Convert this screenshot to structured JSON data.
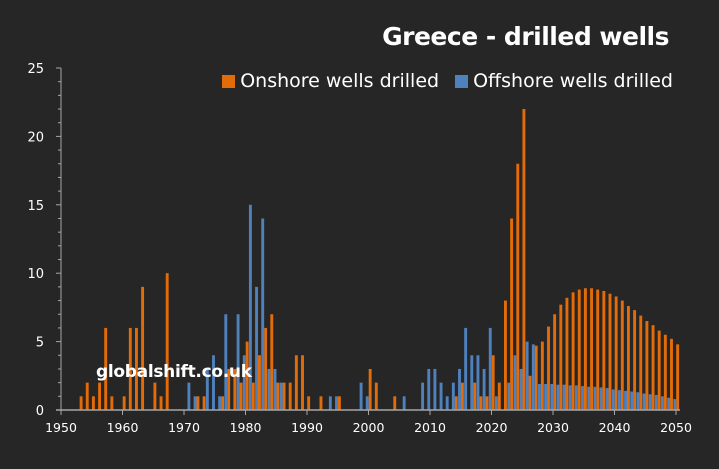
{
  "chart_data": {
    "type": "bar",
    "title": "Greece - drilled wells",
    "watermark": "globalshift.co.uk",
    "xlabel": "",
    "ylabel": "",
    "ylim": [
      0,
      25
    ],
    "xlim": [
      1950,
      2050
    ],
    "yticks": [
      0,
      5,
      10,
      15,
      20,
      25
    ],
    "xticks": [
      1950,
      1960,
      1970,
      1980,
      1990,
      2000,
      2010,
      2020,
      2030,
      2040,
      2050
    ],
    "grid": false,
    "legend_position": "top-right",
    "colors": {
      "onshore": "#e36c0a",
      "offshore": "#4f81bd",
      "background": "#262626",
      "axis": "#a6a6a6",
      "text": "#ffffff"
    },
    "series": [
      {
        "name": "Onshore wells drilled",
        "key": "onshore",
        "points": [
          [
            1953,
            1
          ],
          [
            1954,
            2
          ],
          [
            1955,
            1
          ],
          [
            1956,
            2
          ],
          [
            1957,
            6
          ],
          [
            1958,
            1
          ],
          [
            1960,
            1
          ],
          [
            1961,
            6
          ],
          [
            1962,
            6
          ],
          [
            1963,
            9
          ],
          [
            1965,
            2
          ],
          [
            1966,
            1
          ],
          [
            1967,
            10
          ],
          [
            1972,
            1
          ],
          [
            1973,
            1
          ],
          [
            1976,
            1
          ],
          [
            1977,
            3
          ],
          [
            1978,
            3
          ],
          [
            1979,
            2
          ],
          [
            1980,
            5
          ],
          [
            1981,
            2
          ],
          [
            1982,
            4
          ],
          [
            1983,
            6
          ],
          [
            1984,
            7
          ],
          [
            1985,
            2
          ],
          [
            1986,
            2
          ],
          [
            1987,
            2
          ],
          [
            1988,
            4
          ],
          [
            1989,
            4
          ],
          [
            1990,
            1
          ],
          [
            1992,
            1
          ],
          [
            1995,
            1
          ],
          [
            2000,
            3
          ],
          [
            2001,
            2
          ],
          [
            2004,
            1
          ],
          [
            2014,
            1
          ],
          [
            2015,
            2
          ],
          [
            2017,
            2
          ],
          [
            2018,
            1
          ],
          [
            2019,
            1
          ],
          [
            2020,
            4
          ],
          [
            2021,
            2
          ],
          [
            2022,
            8
          ],
          [
            2023,
            14
          ],
          [
            2024,
            18
          ],
          [
            2025,
            22
          ],
          [
            2026,
            2.5
          ],
          [
            2027,
            4.7
          ],
          [
            2028,
            5
          ],
          [
            2029,
            6.1
          ],
          [
            2030,
            7
          ],
          [
            2031,
            7.7
          ],
          [
            2032,
            8.2
          ],
          [
            2033,
            8.6
          ],
          [
            2034,
            8.8
          ],
          [
            2035,
            8.9
          ],
          [
            2036,
            8.9
          ],
          [
            2037,
            8.8
          ],
          [
            2038,
            8.7
          ],
          [
            2039,
            8.5
          ],
          [
            2040,
            8.3
          ],
          [
            2041,
            8.0
          ],
          [
            2042,
            7.6
          ],
          [
            2043,
            7.3
          ],
          [
            2044,
            6.9
          ],
          [
            2045,
            6.5
          ],
          [
            2046,
            6.2
          ],
          [
            2047,
            5.8
          ],
          [
            2048,
            5.5
          ],
          [
            2049,
            5.2
          ],
          [
            2050,
            4.8
          ]
        ]
      },
      {
        "name": "Offshore wells drilled",
        "key": "offshore",
        "points": [
          [
            1971,
            2
          ],
          [
            1972,
            1
          ],
          [
            1974,
            3
          ],
          [
            1975,
            4
          ],
          [
            1976,
            1
          ],
          [
            1977,
            7
          ],
          [
            1979,
            7
          ],
          [
            1980,
            4
          ],
          [
            1981,
            15
          ],
          [
            1982,
            9
          ],
          [
            1983,
            14
          ],
          [
            1984,
            3
          ],
          [
            1985,
            3
          ],
          [
            1986,
            2
          ],
          [
            1994,
            1
          ],
          [
            1995,
            1
          ],
          [
            1999,
            2
          ],
          [
            2000,
            1
          ],
          [
            2006,
            1
          ],
          [
            2009,
            2
          ],
          [
            2010,
            3
          ],
          [
            2011,
            3
          ],
          [
            2012,
            2
          ],
          [
            2013,
            1
          ],
          [
            2014,
            2
          ],
          [
            2015,
            3
          ],
          [
            2016,
            6
          ],
          [
            2017,
            4
          ],
          [
            2018,
            4
          ],
          [
            2019,
            3
          ],
          [
            2020,
            6
          ],
          [
            2021,
            1
          ],
          [
            2023,
            2
          ],
          [
            2024,
            4
          ],
          [
            2025,
            3
          ],
          [
            2026,
            5
          ],
          [
            2027,
            4.8
          ],
          [
            2028,
            1.9
          ],
          [
            2029,
            1.9
          ],
          [
            2030,
            1.9
          ],
          [
            2031,
            1.85
          ],
          [
            2032,
            1.85
          ],
          [
            2033,
            1.8
          ],
          [
            2034,
            1.8
          ],
          [
            2035,
            1.75
          ],
          [
            2036,
            1.7
          ],
          [
            2037,
            1.7
          ],
          [
            2038,
            1.65
          ],
          [
            2039,
            1.6
          ],
          [
            2040,
            1.5
          ],
          [
            2041,
            1.45
          ],
          [
            2042,
            1.4
          ],
          [
            2043,
            1.35
          ],
          [
            2044,
            1.3
          ],
          [
            2045,
            1.2
          ],
          [
            2046,
            1.15
          ],
          [
            2047,
            1.1
          ],
          [
            2048,
            1.0
          ],
          [
            2049,
            0.9
          ],
          [
            2050,
            0.8
          ]
        ]
      }
    ]
  }
}
